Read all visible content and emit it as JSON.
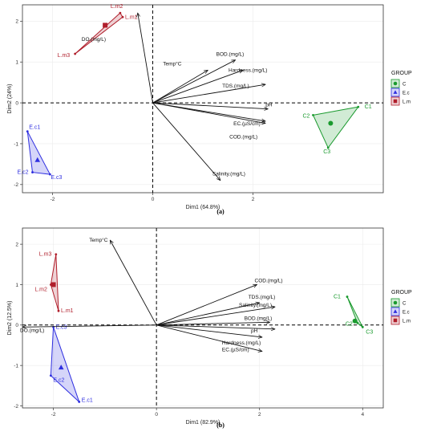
{
  "legend_title": "GROUP",
  "chart_data": [
    {
      "type": "scatter",
      "caption": "(a)",
      "xlabel": "Dim1 (64.8%)",
      "ylabel": "Dim2 (24%)",
      "xlim": [
        -2.6,
        4.6
      ],
      "ylim": [
        -2.2,
        2.4
      ],
      "xticks": [
        -2,
        0,
        2
      ],
      "yticks": [
        -2,
        -1,
        0,
        1,
        2
      ],
      "grid": true,
      "legend_position": "right",
      "groups": [
        {
          "name": "C",
          "color": "#1a9a2e",
          "points": [
            {
              "label": "C1",
              "x": 4.1,
              "y": -0.1
            },
            {
              "label": "C2",
              "x": 3.2,
              "y": -0.3
            },
            {
              "label": "C3",
              "x": 3.5,
              "y": -1.1
            }
          ],
          "centroid": [
            3.55,
            -0.5
          ]
        },
        {
          "name": "E.c",
          "color": "#2f2fe0",
          "points": [
            {
              "label": "E.c1",
              "x": -2.5,
              "y": -0.7
            },
            {
              "label": "E.c2",
              "x": -2.4,
              "y": -1.7
            },
            {
              "label": "E.c3",
              "x": -2.05,
              "y": -1.75
            }
          ],
          "centroid": [
            -2.3,
            -1.4
          ]
        },
        {
          "name": "L.m",
          "color": "#b01e2b",
          "points": [
            {
              "label": "L.m2",
              "x": -0.65,
              "y": 2.2
            },
            {
              "label": "L.m1",
              "x": -0.6,
              "y": 2.1
            },
            {
              "label": "L.m3",
              "x": -1.55,
              "y": 1.2
            }
          ],
          "centroid": [
            -0.95,
            1.9
          ]
        }
      ],
      "variables": [
        {
          "label": "DO.(mg/L)",
          "x": -0.3,
          "y": 2.2
        },
        {
          "label": "Temp°C",
          "x": 1.1,
          "y": 0.8
        },
        {
          "label": "BOD.(mg/L)",
          "x": 1.65,
          "y": 1.05
        },
        {
          "label": "Hardness.(mg/L)",
          "x": 1.8,
          "y": 0.8
        },
        {
          "label": "TDS.(mg/L)",
          "x": 2.25,
          "y": 0.45
        },
        {
          "label": "pH",
          "x": 2.3,
          "y": -0.15
        },
        {
          "label": "EC.(µS/cm)",
          "x": 2.25,
          "y": -0.45
        },
        {
          "label": "COD.(mg/L)",
          "x": 2.25,
          "y": -0.5
        },
        {
          "label": "Salinity.(mg/L)",
          "x": 1.35,
          "y": -1.9
        }
      ]
    },
    {
      "type": "scatter",
      "caption": "(b)",
      "xlabel": "Dim1 (82.9%)",
      "ylabel": "Dim2 (12.5%)",
      "xlim": [
        -2.6,
        4.4
      ],
      "ylim": [
        -2.05,
        2.4
      ],
      "xticks": [
        -2,
        0,
        2,
        4
      ],
      "yticks": [
        -2,
        -1,
        0,
        1,
        2
      ],
      "grid": true,
      "legend_position": "right",
      "groups": [
        {
          "name": "C",
          "color": "#1a9a2e",
          "points": [
            {
              "label": "C1",
              "x": 3.7,
              "y": 0.7
            },
            {
              "label": "C2",
              "x": 3.9,
              "y": 0.05
            },
            {
              "label": "C3",
              "x": 4.0,
              "y": -0.05
            }
          ],
          "centroid": [
            3.85,
            0.1
          ]
        },
        {
          "name": "E.c",
          "color": "#2f2fe0",
          "points": [
            {
              "label": "E.c3",
              "x": -2.0,
              "y": -0.05
            },
            {
              "label": "E.c2",
              "x": -2.05,
              "y": -1.25
            },
            {
              "label": "E.c1",
              "x": -1.5,
              "y": -1.9
            }
          ],
          "centroid": [
            -1.85,
            -1.05
          ]
        },
        {
          "name": "L.m",
          "color": "#b01e2b",
          "points": [
            {
              "label": "L.m3",
              "x": -1.95,
              "y": 1.75
            },
            {
              "label": "L.m2",
              "x": -2.05,
              "y": 1.0
            },
            {
              "label": "L.m1",
              "x": -1.9,
              "y": 0.35
            }
          ],
          "centroid": [
            -2.0,
            1.0
          ]
        }
      ],
      "variables": [
        {
          "label": "Temp°C",
          "x": -0.9,
          "y": 2.1
        },
        {
          "label": "DO.(mg/L)",
          "x": -2.6,
          "y": -0.05
        },
        {
          "label": "COD.(mg/L)",
          "x": 1.95,
          "y": 1.0
        },
        {
          "label": "TDS.(mg/L)",
          "x": 2.0,
          "y": 0.55
        },
        {
          "label": "Salinity.(mg/L)",
          "x": 2.3,
          "y": 0.45
        },
        {
          "label": "BOD.(mg/L)",
          "x": 2.2,
          "y": 0.07
        },
        {
          "label": "pH",
          "x": 2.3,
          "y": -0.1
        },
        {
          "label": "Hardness.(mg/L)",
          "x": 2.05,
          "y": -0.3
        },
        {
          "label": "EC.(µS/cm)",
          "x": 2.05,
          "y": -0.65
        }
      ]
    }
  ]
}
